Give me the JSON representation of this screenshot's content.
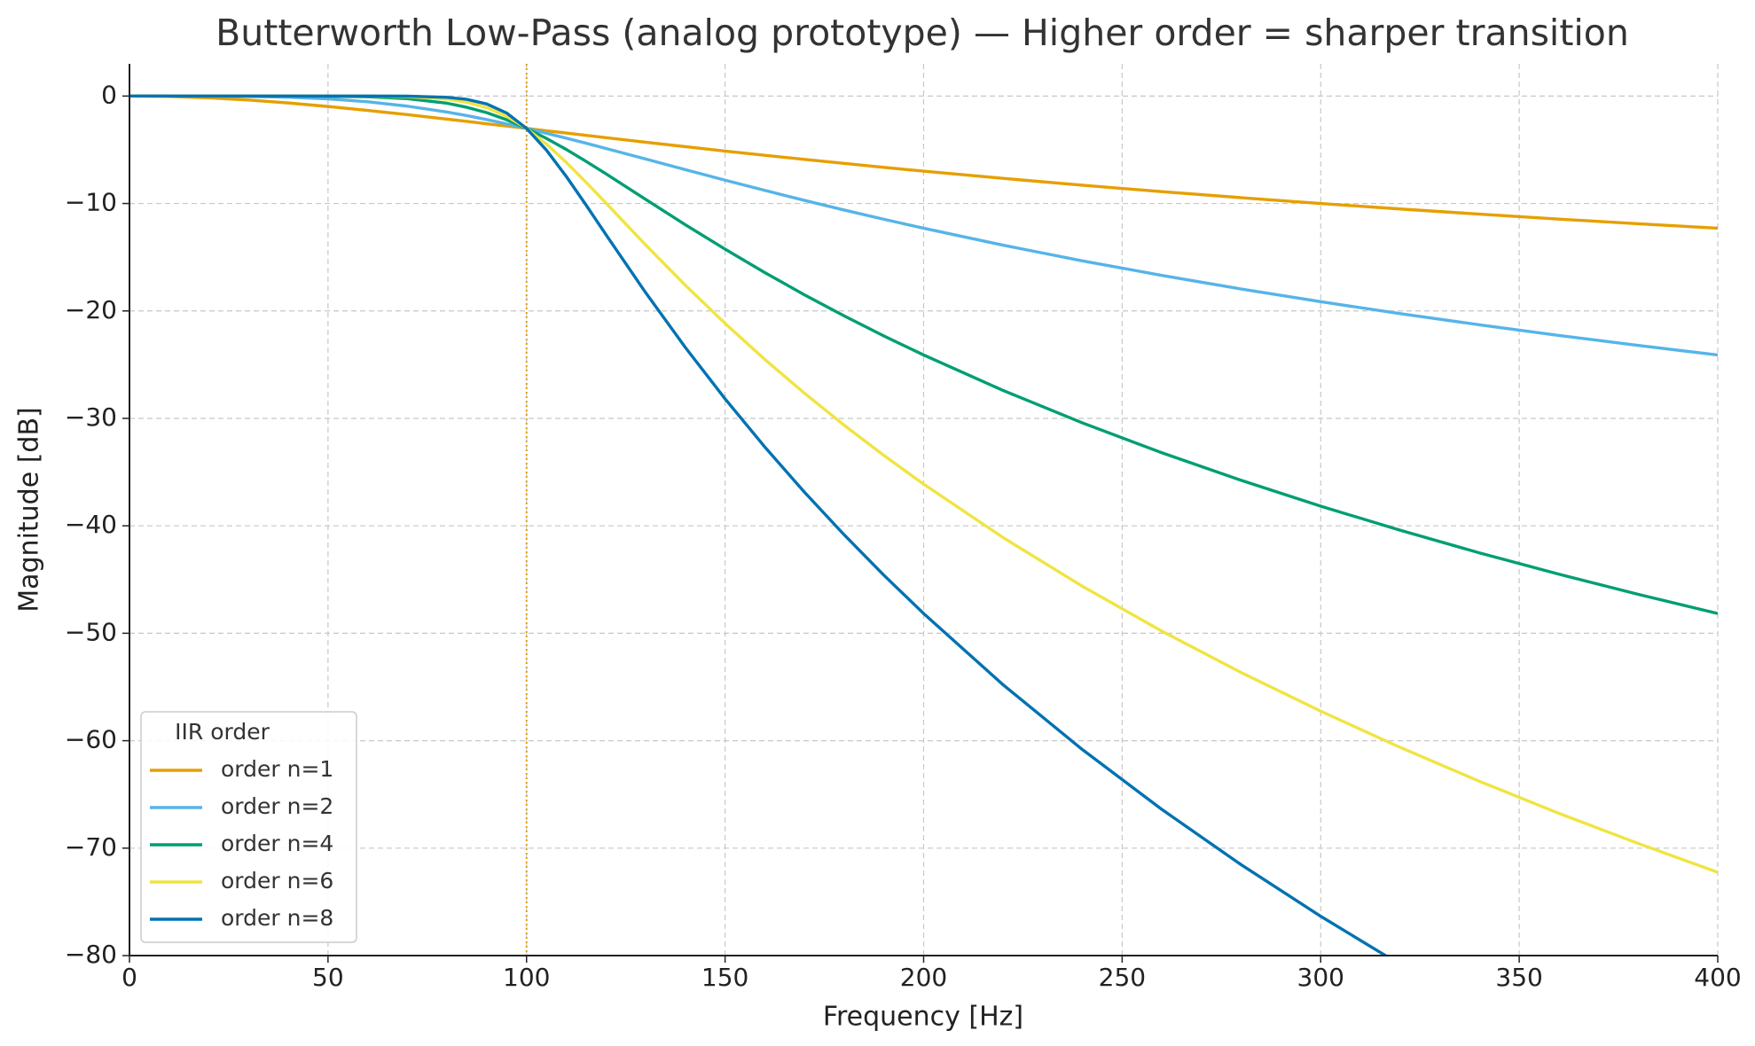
{
  "chart_data": {
    "type": "line",
    "title": "Butterworth Low-Pass (analog prototype) — Higher order = sharper transition",
    "x_label": "Frequency [Hz]",
    "y_label": "Magnitude [dB]",
    "x": [
      0,
      10,
      20,
      30,
      40,
      50,
      60,
      70,
      80,
      85,
      90,
      95,
      100,
      105,
      110,
      115,
      120,
      130,
      140,
      150,
      160,
      170,
      180,
      190,
      200,
      220,
      240,
      260,
      280,
      300,
      320,
      340,
      360,
      380,
      400
    ],
    "series": [
      {
        "name": "order n=1",
        "color": "#e69f00",
        "values": [
          0,
          -0.04,
          -0.17,
          -0.37,
          -0.64,
          -0.97,
          -1.34,
          -1.73,
          -2.15,
          -2.36,
          -2.58,
          -2.79,
          -3.01,
          -3.23,
          -3.44,
          -3.66,
          -3.87,
          -4.3,
          -4.71,
          -5.12,
          -5.51,
          -5.9,
          -6.27,
          -6.64,
          -6.99,
          -7.66,
          -8.3,
          -8.9,
          -9.46,
          -10.0,
          -10.51,
          -10.99,
          -11.45,
          -11.89,
          -12.3
        ]
      },
      {
        "name": "order n=2",
        "color": "#56b4e9",
        "values": [
          0,
          0,
          -0.01,
          -0.04,
          -0.11,
          -0.26,
          -0.53,
          -0.94,
          -1.49,
          -1.82,
          -2.19,
          -2.59,
          -3.01,
          -3.46,
          -3.92,
          -4.39,
          -4.88,
          -5.86,
          -6.85,
          -7.83,
          -8.78,
          -9.71,
          -10.61,
          -11.47,
          -12.3,
          -13.88,
          -15.34,
          -16.69,
          -17.96,
          -19.14,
          -20.25,
          -21.29,
          -22.28,
          -23.21,
          -24.1
        ]
      },
      {
        "name": "order n=4",
        "color": "#009e73",
        "values": [
          0,
          0,
          0,
          0,
          0,
          -0.02,
          -0.07,
          -0.24,
          -0.67,
          -1.05,
          -1.55,
          -2.21,
          -3.01,
          -3.94,
          -4.97,
          -6.08,
          -7.24,
          -9.62,
          -11.98,
          -14.25,
          -16.43,
          -18.5,
          -20.46,
          -22.33,
          -24.1,
          -27.4,
          -30.42,
          -33.2,
          -35.77,
          -38.17,
          -40.41,
          -42.52,
          -44.5,
          -46.38,
          -48.16
        ]
      },
      {
        "name": "order n=6",
        "color": "#f0e442",
        "values": [
          0,
          0,
          0,
          0,
          0,
          0,
          -0.01,
          -0.06,
          -0.29,
          -0.58,
          -1.08,
          -1.88,
          -3.01,
          -4.47,
          -6.17,
          -8.03,
          -9.96,
          -13.86,
          -17.61,
          -21.16,
          -24.51,
          -27.66,
          -30.64,
          -33.45,
          -36.12,
          -41.09,
          -45.63,
          -49.8,
          -53.66,
          -57.25,
          -60.62,
          -63.78,
          -66.76,
          -69.57,
          -72.25
        ]
      },
      {
        "name": "order n=8",
        "color": "#0072b2",
        "values": [
          0,
          0,
          0,
          0,
          0,
          0,
          0,
          -0.01,
          -0.12,
          -0.31,
          -0.74,
          -1.58,
          -3.01,
          -5.03,
          -7.48,
          -10.15,
          -12.9,
          -18.3,
          -23.4,
          -28.18,
          -32.66,
          -36.87,
          -40.84,
          -44.6,
          -48.16,
          -54.79,
          -60.83,
          -66.4,
          -71.55,
          -76.34,
          -80.82,
          null,
          null,
          null,
          null
        ]
      }
    ],
    "legend_title": "IIR order",
    "legend": "lower left",
    "vline": {
      "x": 100,
      "color": "#e69f00"
    },
    "xlim": [
      0,
      400
    ],
    "xticks": [
      0,
      50,
      100,
      150,
      200,
      250,
      300,
      350,
      400
    ],
    "ylim": [
      -80,
      3
    ],
    "yticks": [
      {
        "value": -80,
        "label": "−80"
      },
      {
        "value": -70,
        "label": "−70"
      },
      {
        "value": -60,
        "label": "−60"
      },
      {
        "value": -50,
        "label": "−50"
      },
      {
        "value": -40,
        "label": "−40"
      },
      {
        "value": -30,
        "label": "−30"
      },
      {
        "value": -20,
        "label": "−20"
      },
      {
        "value": -10,
        "label": "−10"
      },
      0
    ],
    "grid": true
  }
}
